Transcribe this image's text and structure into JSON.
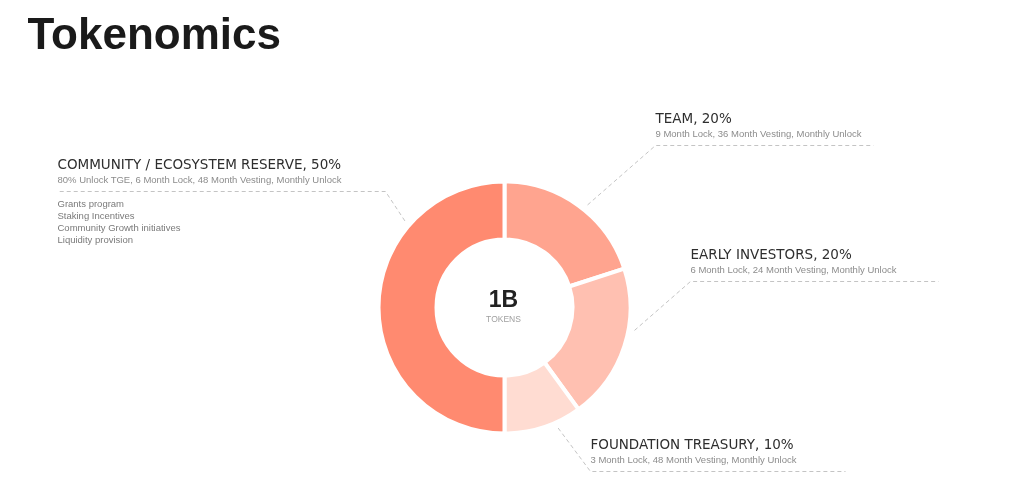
{
  "chart_data": {
    "type": "donut",
    "title": "Tokenomics",
    "categories": [
      "TEAM, 20%",
      "EARLY INVESTORS, 20%",
      "FOUNDATION TREASURY, 10%",
      "COMMUNITY / ECOSYSTEM RESERVE, 50%"
    ],
    "values": [
      20,
      20,
      10,
      50
    ],
    "colors": [
      "#ffa48f",
      "#ffc0b1",
      "#ffdcd2",
      "#ff8a70"
    ],
    "annotations": [
      {
        "text": "9 Month Lock, 36 Month Vesting, Monthly Unlock",
        "x": "TEAM, 20%"
      },
      {
        "text": "6 Month Lock, 24 Month Vesting, Monthly Unlock",
        "x": "EARLY INVESTORS, 20%"
      },
      {
        "text": "3 Month Lock, 48 Month Vesting, Monthly Unlock",
        "x": "FOUNDATION TREASURY, 10%"
      },
      {
        "text": "80% Unlock TGE, 6 Month Lock, 48 Month Vesting, Monthly Unlock",
        "x": "COMMUNITY / ECOSYSTEM RESERVE, 50%"
      },
      {
        "text": "Grants program",
        "x": "COMMUNITY / ECOSYSTEM RESERVE, 50%"
      },
      {
        "text": "Staking Incentives",
        "x": "COMMUNITY / ECOSYSTEM RESERVE, 50%"
      },
      {
        "text": "Community Growth initiatives",
        "x": "COMMUNITY / ECOSYSTEM RESERVE, 50%"
      },
      {
        "text": "Liquidity provision",
        "x": "COMMUNITY / ECOSYSTEM RESERVE, 50%"
      },
      "1B",
      "TOKENS"
    ]
  }
}
